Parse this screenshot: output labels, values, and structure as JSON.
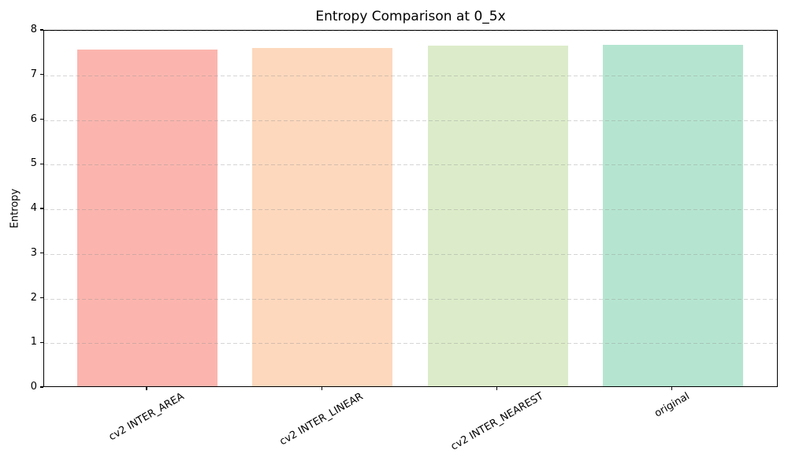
{
  "chart_data": {
    "type": "bar",
    "title": "Entropy Comparison at 0_5x",
    "xlabel": "",
    "ylabel": "Entropy",
    "categories": [
      "cv2 INTER_AREA",
      "cv2 INTER_LINEAR",
      "cv2 INTER_NEAREST",
      "original"
    ],
    "values": [
      7.55,
      7.57,
      7.63,
      7.65
    ],
    "bar_colors": [
      "#fbb5ae",
      "#fdd8bd",
      "#dcecca",
      "#b5e5d1"
    ],
    "ylim": [
      0,
      8
    ],
    "yticks": [
      0,
      1,
      2,
      3,
      4,
      5,
      6,
      7,
      8
    ],
    "grid": "horizontal-dashed",
    "legend": "none",
    "x_tick_rotation_deg": 30
  }
}
